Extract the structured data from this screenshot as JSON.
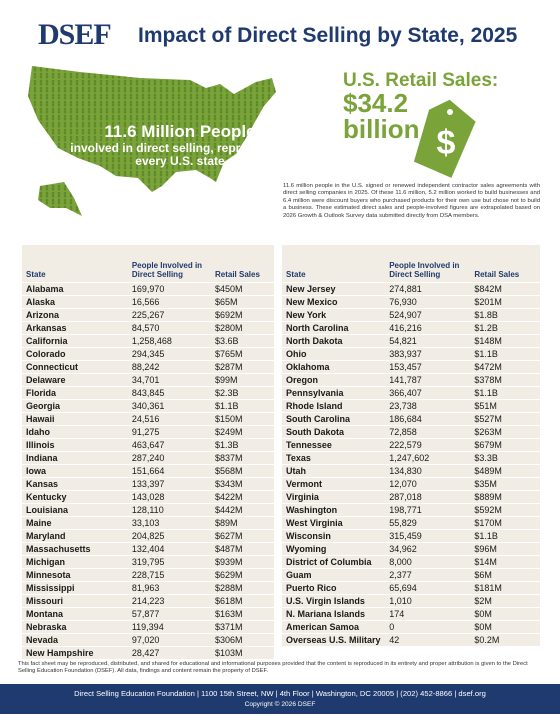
{
  "header": {
    "logo": "DSEF",
    "title": "Impact of Direct Selling by State, 2025"
  },
  "map": {
    "headline": "11.6 Million People",
    "subline": "involved in direct selling, representing every U.S. state"
  },
  "retail": {
    "label": "U.S. Retail Sales:",
    "value": "$34.2 billion",
    "tag_symbol": "$"
  },
  "summary": "11.6 million people in the U.S. signed or renewed independent contractor sales agreements with direct selling companies in 2025. Of these 11.6 million, 5.2 million worked to build businesses and 6.4 million were discount buyers who purchased products for their own use but chose not to build a business. These estimated direct sales and people-involved figures are extrapolated based on 2026 Growth & Outlook Survey data submitted directly from DSA members.",
  "tables": [
    {
      "columns": [
        "State",
        "People Involved in Direct Selling",
        "Retail Sales"
      ],
      "rows": [
        [
          "Alabama",
          "169,970",
          "$450M"
        ],
        [
          "Alaska",
          "16,566",
          "$65M"
        ],
        [
          "Arizona",
          "225,267",
          "$692M"
        ],
        [
          "Arkansas",
          "84,570",
          "$280M"
        ],
        [
          "California",
          "1,258,468",
          "$3.6B"
        ],
        [
          "Colorado",
          "294,345",
          "$765M"
        ],
        [
          "Connecticut",
          "88,242",
          "$287M"
        ],
        [
          "Delaware",
          "34,701",
          "$99M"
        ],
        [
          "Florida",
          "843,845",
          "$2.3B"
        ],
        [
          "Georgia",
          "340,361",
          "$1.1B"
        ],
        [
          "Hawaii",
          "24,516",
          "$150M"
        ],
        [
          "Idaho",
          "91,275",
          "$249M"
        ],
        [
          "Illinois",
          "463,647",
          "$1.3B"
        ],
        [
          "Indiana",
          "287,240",
          "$837M"
        ],
        [
          "Iowa",
          "151,664",
          "$568M"
        ],
        [
          "Kansas",
          "133,397",
          "$343M"
        ],
        [
          "Kentucky",
          "143,028",
          "$422M"
        ],
        [
          "Louisiana",
          "128,110",
          "$442M"
        ],
        [
          "Maine",
          "33,103",
          "$89M"
        ],
        [
          "Maryland",
          "204,825",
          "$627M"
        ],
        [
          "Massachusetts",
          "132,404",
          "$487M"
        ],
        [
          "Michigan",
          "319,795",
          "$939M"
        ],
        [
          "Minnesota",
          "228,715",
          "$629M"
        ],
        [
          "Mississippi",
          "81,963",
          "$288M"
        ],
        [
          "Missouri",
          "214,223",
          "$618M"
        ],
        [
          "Montana",
          "57,877",
          "$163M"
        ],
        [
          "Nebraska",
          "119,394",
          "$371M"
        ],
        [
          "Nevada",
          "97,020",
          "$306M"
        ],
        [
          "New Hampshire",
          "28,427",
          "$103M"
        ]
      ]
    },
    {
      "columns": [
        "State",
        "People Involved in Direct Selling",
        "Retail Sales"
      ],
      "rows": [
        [
          "New Jersey",
          "274,881",
          "$842M"
        ],
        [
          "New Mexico",
          "76,930",
          "$201M"
        ],
        [
          "New York",
          "524,907",
          "$1.8B"
        ],
        [
          "North Carolina",
          "416,216",
          "$1.2B"
        ],
        [
          "North Dakota",
          "54,821",
          "$148M"
        ],
        [
          "Ohio",
          "383,937",
          "$1.1B"
        ],
        [
          "Oklahoma",
          "153,457",
          "$472M"
        ],
        [
          "Oregon",
          "141,787",
          "$378M"
        ],
        [
          "Pennsylvania",
          "366,407",
          "$1.1B"
        ],
        [
          "Rhode Island",
          "23,738",
          "$51M"
        ],
        [
          "South Carolina",
          "186,684",
          "$527M"
        ],
        [
          "South Dakota",
          "72,858",
          "$263M"
        ],
        [
          "Tennessee",
          "222,579",
          "$679M"
        ],
        [
          "Texas",
          "1,247,602",
          "$3.3B"
        ],
        [
          "Utah",
          "134,830",
          "$489M"
        ],
        [
          "Vermont",
          "12,070",
          "$35M"
        ],
        [
          "Virginia",
          "287,018",
          "$889M"
        ],
        [
          "Washington",
          "198,771",
          "$592M"
        ],
        [
          "West Virginia",
          "55,829",
          "$170M"
        ],
        [
          "Wisconsin",
          "315,459",
          "$1.1B"
        ],
        [
          "Wyoming",
          "34,962",
          "$96M"
        ],
        [
          "District of Columbia",
          "8,000",
          "$14M"
        ],
        [
          "Guam",
          "2,377",
          "$6M"
        ],
        [
          "Puerto Rico",
          "65,694",
          "$181M"
        ],
        [
          "U.S. Virgin Islands",
          "1,010",
          "$2M"
        ],
        [
          "N. Mariana Islands",
          "174",
          "$0M"
        ],
        [
          "American Samoa",
          "0",
          "$0M"
        ],
        [
          "Overseas U.S. Military",
          "42",
          "$0.2M"
        ]
      ]
    }
  ],
  "footer": {
    "note": "This fact sheet may be reproduced, distributed, and shared for educational and informational purposes provided that the content is reproduced in its entirety and proper attribution is given to the Direct Selling Education Foundation (DSEF). All data, findings and content remain the property of DSEF.",
    "address": "Direct Selling Education Foundation | 1100 15th Street, NW | 4th Floor | Washington, DC 20005 | (202) 452-8866 | dsef.org",
    "copyright": "Copyright © 2026 DSEF"
  }
}
